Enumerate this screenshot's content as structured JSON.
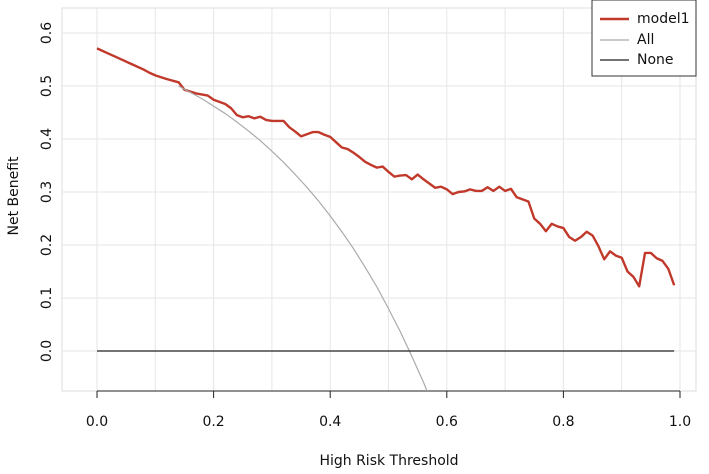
{
  "chart_data": {
    "type": "line",
    "title": "",
    "xlabel": "High Risk Threshold",
    "ylabel": "Net Benefit",
    "xlim": [
      0,
      1
    ],
    "ylim": [
      -0.08,
      0.6
    ],
    "x_ticks": [
      "0.0",
      "0.2",
      "0.4",
      "0.6",
      "0.8",
      "1.0"
    ],
    "y_ticks": [
      "0.0",
      "0.1",
      "0.2",
      "0.3",
      "0.4",
      "0.5",
      "0.6"
    ],
    "grid": true,
    "legend_position": "top-right",
    "series": [
      {
        "name": "model1",
        "color": "#c0392b",
        "x": [
          0,
          0.02,
          0.04,
          0.06,
          0.08,
          0.09,
          0.1,
          0.12,
          0.14,
          0.15,
          0.17,
          0.19,
          0.2,
          0.22,
          0.23,
          0.24,
          0.25,
          0.26,
          0.27,
          0.28,
          0.29,
          0.3,
          0.32,
          0.33,
          0.34,
          0.35,
          0.36,
          0.37,
          0.38,
          0.39,
          0.4,
          0.41,
          0.42,
          0.43,
          0.44,
          0.45,
          0.46,
          0.47,
          0.48,
          0.49,
          0.5,
          0.51,
          0.52,
          0.53,
          0.54,
          0.55,
          0.56,
          0.57,
          0.58,
          0.59,
          0.6,
          0.61,
          0.62,
          0.63,
          0.64,
          0.65,
          0.66,
          0.67,
          0.68,
          0.69,
          0.7,
          0.71,
          0.72,
          0.73,
          0.74,
          0.75,
          0.76,
          0.77,
          0.78,
          0.79,
          0.8,
          0.81,
          0.82,
          0.83,
          0.84,
          0.85,
          0.86,
          0.87,
          0.88,
          0.89,
          0.9,
          0.91,
          0.92,
          0.93,
          0.94,
          0.95,
          0.96,
          0.97,
          0.98,
          0.99
        ],
        "y": [
          0.571,
          0.561,
          0.551,
          0.541,
          0.531,
          0.525,
          0.52,
          0.513,
          0.507,
          0.493,
          0.486,
          0.482,
          0.474,
          0.466,
          0.458,
          0.445,
          0.441,
          0.443,
          0.439,
          0.442,
          0.436,
          0.434,
          0.434,
          0.422,
          0.414,
          0.405,
          0.409,
          0.413,
          0.413,
          0.408,
          0.404,
          0.394,
          0.384,
          0.381,
          0.374,
          0.366,
          0.357,
          0.351,
          0.346,
          0.348,
          0.338,
          0.329,
          0.331,
          0.332,
          0.324,
          0.333,
          0.324,
          0.316,
          0.308,
          0.31,
          0.305,
          0.296,
          0.3,
          0.301,
          0.305,
          0.302,
          0.302,
          0.309,
          0.302,
          0.31,
          0.302,
          0.306,
          0.29,
          0.286,
          0.282,
          0.25,
          0.24,
          0.226,
          0.24,
          0.235,
          0.232,
          0.215,
          0.208,
          0.215,
          0.225,
          0.218,
          0.198,
          0.173,
          0.188,
          0.18,
          0.176,
          0.15,
          0.14,
          0.122,
          0.185,
          0.185,
          0.175,
          0.17,
          0.155,
          0.124
        ]
      },
      {
        "name": "All",
        "color": "#aaaaaa",
        "x": [
          0.14,
          0.16,
          0.18,
          0.2,
          0.22,
          0.24,
          0.26,
          0.28,
          0.3,
          0.32,
          0.34,
          0.36,
          0.38,
          0.4,
          0.42,
          0.44,
          0.46,
          0.48,
          0.5,
          0.52,
          0.54,
          0.56,
          0.58,
          0.6
        ],
        "y": [
          0.5,
          0.488,
          0.476,
          0.462,
          0.448,
          0.432,
          0.415,
          0.397,
          0.377,
          0.356,
          0.333,
          0.309,
          0.283,
          0.255,
          0.225,
          0.193,
          0.158,
          0.121,
          0.08,
          0.037,
          -0.01,
          -0.059,
          -0.113,
          -0.17
        ]
      },
      {
        "name": "None",
        "color": "#222222",
        "x": [
          0,
          0.99
        ],
        "y": [
          0,
          0
        ]
      }
    ]
  }
}
